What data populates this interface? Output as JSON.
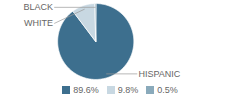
{
  "chart_data": {
    "type": "pie",
    "categories": [
      "HISPANIC",
      "WHITE",
      "BLACK"
    ],
    "values": [
      89.6,
      9.8,
      0.5
    ],
    "value_labels": [
      "89.6%",
      "9.8%",
      "0.5%"
    ],
    "colors": [
      "#3d6f8e",
      "#c8d8e2",
      "#8aaabb"
    ],
    "legend": "bottom"
  }
}
